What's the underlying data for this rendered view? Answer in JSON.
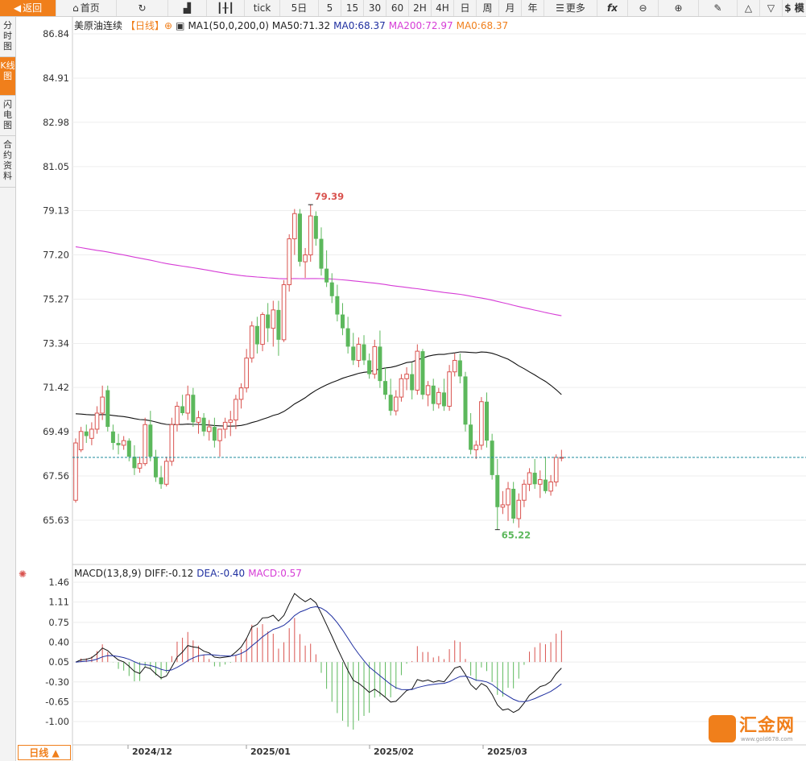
{
  "toolbar": {
    "back": "返回",
    "home": "首页",
    "tick": "tick",
    "five_day": "5日",
    "m5": "5",
    "m15": "15",
    "m30": "30",
    "m60": "60",
    "h2": "2H",
    "h4": "4H",
    "day": "日",
    "week": "周",
    "month": "月",
    "year": "年",
    "more": "更多",
    "fx": "fx",
    "dollar": "$ 模"
  },
  "sidebar": {
    "items": [
      {
        "label": "分时图"
      },
      {
        "label": "K线图"
      },
      {
        "label": "闪电图"
      },
      {
        "label": "合约资料"
      }
    ]
  },
  "legend": {
    "title": "美原油连续",
    "period": "【日线】",
    "ma1": "MA1(50,0,200,0)",
    "ma50": "MA50:71.32",
    "ma0a": "MA0:68.37",
    "ma200": "MA200:72.97",
    "ma0b": "MA0:68.37"
  },
  "macd_legend": {
    "name": "MACD(13,8,9)",
    "diff": "DIFF:-0.12",
    "dea": "DEA:-0.40",
    "macd": "MACD:0.57"
  },
  "bottom_tab": "日线 ▲",
  "watermark": {
    "text": "汇金网",
    "url": "www.gold678.com"
  },
  "colors": {
    "up": "#d9534f",
    "down": "#5cb85c",
    "ma200": "#d63cd6",
    "ma50": "#111111",
    "accent": "#f07f1b",
    "diff": "#111111",
    "dea": "#1f2fa0"
  },
  "chart_data": {
    "type": "candlestick",
    "y_ticks": [
      "86.84",
      "84.91",
      "82.98",
      "81.05",
      "79.13",
      "77.20",
      "75.27",
      "73.34",
      "71.42",
      "69.49",
      "67.56",
      "65.63"
    ],
    "x_ticks": [
      "2024/12",
      "2025/01",
      "2025/02",
      "2025/03"
    ],
    "high_label": "79.39",
    "low_label": "65.22",
    "current_price": 68.37,
    "macd_y_ticks": [
      "1.46",
      "1.11",
      "0.75",
      "0.40",
      "0.05",
      "-0.30",
      "-0.65",
      "-1.00"
    ],
    "ohlc": [
      [
        66.5,
        69.2,
        66.4,
        69.0
      ],
      [
        68.7,
        69.7,
        68.6,
        69.5
      ],
      [
        69.5,
        69.8,
        69.0,
        69.3
      ],
      [
        69.2,
        69.9,
        68.9,
        69.6
      ],
      [
        69.6,
        70.6,
        69.4,
        70.3
      ],
      [
        70.3,
        71.5,
        70.0,
        71.0
      ],
      [
        71.3,
        71.5,
        69.5,
        69.7
      ],
      [
        69.5,
        69.8,
        68.7,
        69.0
      ],
      [
        69.0,
        69.4,
        68.5,
        68.9
      ],
      [
        68.9,
        69.3,
        68.7,
        69.1
      ],
      [
        69.1,
        69.2,
        68.2,
        68.4
      ],
      [
        68.4,
        68.9,
        67.6,
        67.9
      ],
      [
        67.9,
        68.4,
        67.7,
        68.1
      ],
      [
        68.1,
        70.1,
        68.0,
        69.8
      ],
      [
        69.8,
        70.4,
        68.2,
        68.4
      ],
      [
        68.4,
        68.7,
        67.3,
        67.5
      ],
      [
        67.5,
        68.0,
        67.0,
        67.2
      ],
      [
        67.2,
        68.4,
        67.1,
        68.2
      ],
      [
        68.2,
        70.1,
        68.0,
        69.8
      ],
      [
        69.8,
        70.8,
        69.5,
        70.6
      ],
      [
        70.6,
        71.1,
        70.2,
        70.3
      ],
      [
        70.3,
        71.5,
        70.0,
        71.1
      ],
      [
        71.1,
        71.4,
        69.7,
        69.9
      ],
      [
        69.9,
        70.4,
        69.4,
        70.1
      ],
      [
        70.1,
        70.3,
        69.3,
        69.5
      ],
      [
        69.5,
        70.0,
        69.1,
        69.7
      ],
      [
        69.7,
        70.1,
        68.8,
        69.1
      ],
      [
        69.1,
        69.6,
        68.4,
        69.6
      ],
      [
        69.6,
        70.1,
        69.2,
        69.9
      ],
      [
        69.9,
        70.4,
        69.3,
        70.0
      ],
      [
        70.0,
        71.1,
        69.6,
        70.9
      ],
      [
        70.9,
        71.6,
        70.5,
        71.4
      ],
      [
        71.4,
        73.1,
        71.2,
        72.7
      ],
      [
        72.7,
        74.3,
        72.5,
        74.1
      ],
      [
        74.1,
        74.5,
        72.9,
        73.3
      ],
      [
        73.3,
        74.7,
        73.0,
        74.6
      ],
      [
        74.6,
        75.1,
        73.4,
        74.0
      ],
      [
        74.0,
        75.2,
        73.2,
        74.8
      ],
      [
        74.8,
        75.2,
        72.8,
        73.5
      ],
      [
        73.5,
        76.1,
        73.4,
        75.9
      ],
      [
        75.9,
        78.1,
        75.6,
        77.9
      ],
      [
        77.9,
        79.2,
        77.2,
        79.0
      ],
      [
        79.0,
        79.2,
        76.7,
        76.9
      ],
      [
        76.9,
        77.5,
        76.2,
        77.2
      ],
      [
        77.2,
        79.39,
        76.9,
        78.9
      ],
      [
        78.9,
        79.1,
        77.6,
        77.9
      ],
      [
        77.9,
        78.4,
        76.3,
        76.6
      ],
      [
        76.6,
        77.4,
        75.8,
        76.0
      ],
      [
        76.0,
        76.4,
        75.1,
        75.4
      ],
      [
        75.4,
        75.9,
        74.3,
        74.6
      ],
      [
        74.6,
        75.1,
        73.7,
        74.0
      ],
      [
        74.0,
        74.5,
        72.9,
        73.2
      ],
      [
        73.2,
        73.8,
        72.4,
        72.6
      ],
      [
        72.6,
        73.6,
        72.3,
        73.3
      ],
      [
        73.3,
        73.7,
        72.4,
        72.6
      ],
      [
        72.6,
        72.9,
        71.8,
        72.0
      ],
      [
        72.0,
        73.5,
        71.8,
        73.2
      ],
      [
        73.2,
        73.9,
        71.4,
        71.7
      ],
      [
        71.7,
        72.3,
        70.9,
        71.1
      ],
      [
        71.1,
        71.8,
        70.2,
        70.4
      ],
      [
        70.4,
        71.3,
        70.2,
        71.0
      ],
      [
        71.0,
        72.0,
        70.8,
        71.8
      ],
      [
        71.8,
        72.3,
        71.3,
        72.0
      ],
      [
        72.0,
        72.5,
        70.9,
        71.3
      ],
      [
        71.3,
        73.3,
        71.1,
        73.0
      ],
      [
        73.0,
        73.1,
        70.9,
        71.1
      ],
      [
        71.1,
        71.7,
        70.6,
        71.5
      ],
      [
        71.5,
        71.8,
        70.4,
        70.7
      ],
      [
        70.7,
        71.4,
        70.5,
        71.2
      ],
      [
        71.2,
        71.8,
        70.4,
        70.6
      ],
      [
        70.6,
        72.4,
        70.4,
        72.1
      ],
      [
        72.1,
        72.9,
        71.9,
        72.6
      ],
      [
        72.6,
        72.9,
        71.6,
        71.9
      ],
      [
        71.9,
        72.1,
        69.5,
        69.8
      ],
      [
        69.8,
        70.3,
        68.5,
        68.7
      ],
      [
        68.7,
        69.1,
        68.3,
        68.9
      ],
      [
        68.9,
        71.0,
        68.7,
        70.8
      ],
      [
        70.8,
        71.2,
        68.8,
        69.1
      ],
      [
        69.1,
        69.4,
        67.4,
        67.6
      ],
      [
        67.6,
        68.3,
        65.22,
        66.2
      ],
      [
        66.2,
        66.9,
        65.9,
        66.3
      ],
      [
        66.3,
        67.3,
        65.6,
        67.0
      ],
      [
        67.0,
        67.3,
        65.5,
        65.7
      ],
      [
        65.7,
        66.8,
        65.3,
        66.5
      ],
      [
        66.5,
        67.4,
        66.2,
        67.2
      ],
      [
        67.2,
        67.9,
        66.9,
        67.7
      ],
      [
        67.7,
        68.3,
        67.0,
        67.2
      ],
      [
        67.2,
        67.8,
        66.6,
        67.4
      ],
      [
        67.4,
        68.4,
        66.8,
        66.9
      ],
      [
        66.9,
        67.6,
        66.7,
        67.3
      ],
      [
        67.3,
        68.5,
        67.1,
        68.37
      ],
      [
        68.37,
        68.7,
        68.2,
        68.37
      ]
    ]
  }
}
